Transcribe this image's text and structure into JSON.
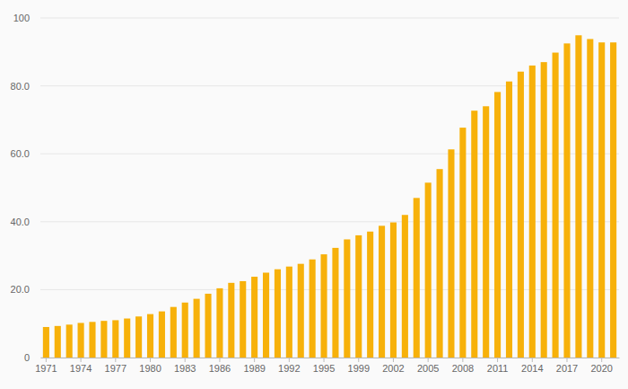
{
  "chart_data": {
    "type": "bar",
    "categories": [
      "1971",
      null,
      null,
      "1974",
      null,
      null,
      "1977",
      null,
      null,
      "1980",
      null,
      null,
      "1983",
      null,
      null,
      "1986",
      null,
      null,
      "1989",
      null,
      null,
      "1992",
      null,
      null,
      "1995",
      null,
      null,
      "1999",
      null,
      null,
      "2002",
      null,
      null,
      "2005",
      null,
      null,
      "2008",
      null,
      null,
      "2011",
      null,
      null,
      "2014",
      null,
      null,
      "2017",
      null,
      null,
      "2020",
      null
    ],
    "values": [
      9.0,
      9.3,
      9.7,
      10.2,
      10.5,
      10.8,
      11.0,
      11.5,
      12.1,
      12.8,
      13.6,
      14.9,
      16.2,
      17.3,
      18.8,
      20.4,
      22.0,
      22.5,
      23.8,
      25.0,
      26.0,
      26.8,
      27.6,
      28.9,
      30.4,
      32.3,
      34.8,
      36.0,
      37.1,
      38.8,
      39.8,
      42.0,
      47.0,
      51.5,
      55.5,
      61.3,
      67.7,
      72.7,
      74.0,
      78.2,
      81.3,
      84.2,
      86.0,
      87.0,
      89.8,
      92.5,
      94.9,
      93.8,
      92.8,
      92.8
    ],
    "color": "#f7b10a",
    "ylim": [
      0,
      100
    ],
    "yticks": [
      0,
      {
        "value": 20,
        "label": "20.0"
      },
      {
        "value": 40,
        "label": "40.0"
      },
      {
        "value": 60,
        "label": "60.0"
      },
      {
        "value": 80,
        "label": "80.0"
      },
      100
    ],
    "grid": true
  }
}
